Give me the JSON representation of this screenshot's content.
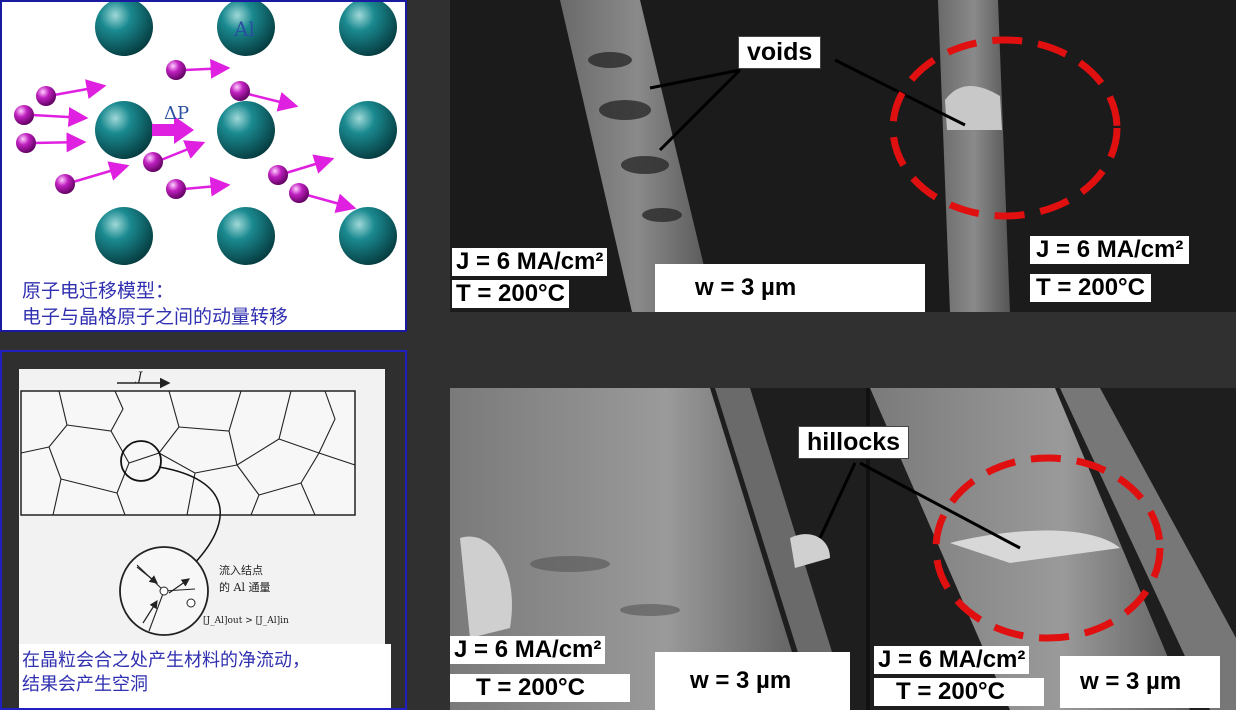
{
  "atom_model": {
    "atom_label": "Al",
    "momentum_label": "ΔP",
    "caption_line1": "原子电迁移模型：",
    "caption_line2": "电子与晶格原子之间的动量转移",
    "colors": {
      "atom": "#0f6f74",
      "electron": "#b81fb8",
      "arrow": "#e020e0",
      "border": "#1a1aa0"
    }
  },
  "grain_model": {
    "current_label": "J",
    "zoom_label_line1": "流入结点",
    "zoom_label_line2": "的 Al 通量",
    "flux_formula": "[J_Al]out > [J_Al]in",
    "caption_line1": "在晶粒会合之处产生材料的净流动，",
    "caption_line2": "结果会产生空洞"
  },
  "top_micrograph": {
    "annotation": "voids",
    "left_j": "J = 6 MA/cm²",
    "left_t": "T = 200°C",
    "width": "w = 3 µm",
    "right_j": "J = 6 MA/cm²",
    "right_t": "T = 200°C",
    "circle_color": "#e01010"
  },
  "bottom_micrograph": {
    "annotation": "hillocks",
    "left_j": "J = 6 MA/cm²",
    "left_t": "T = 200°C",
    "left_w": "w = 3 µm",
    "right_j": "J = 6 MA/cm²",
    "right_t": "T = 200°C",
    "right_w": "w = 3 µm"
  }
}
